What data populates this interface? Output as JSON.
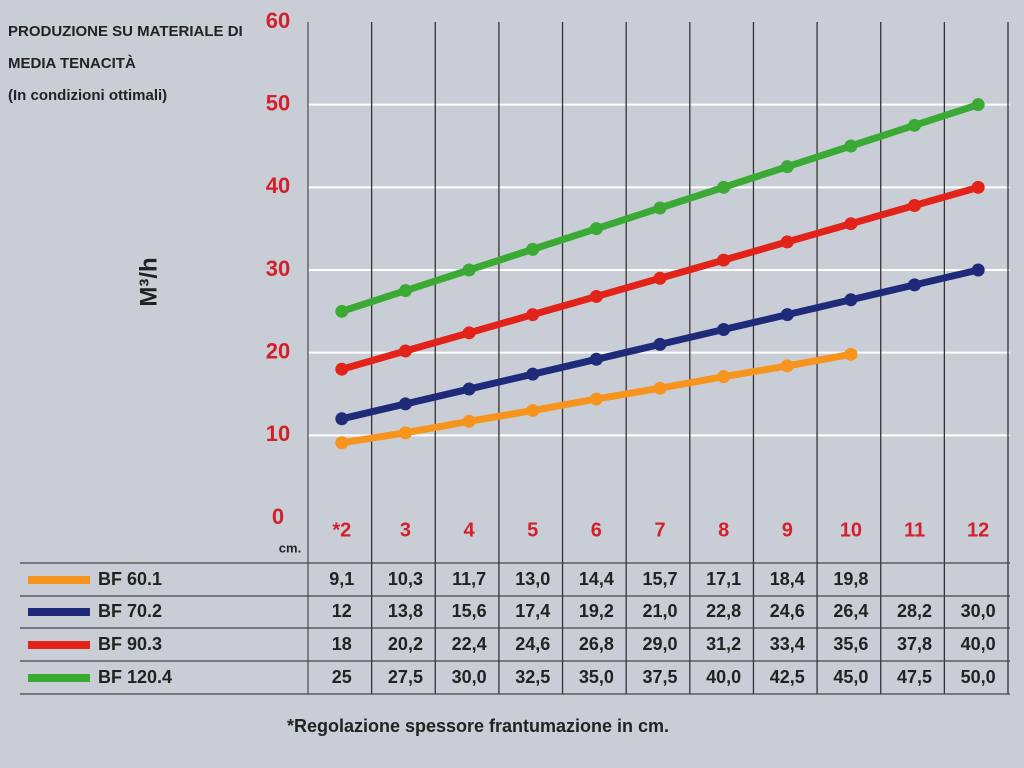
{
  "chart_data": {
    "type": "line",
    "title_lines": [
      "PRODUZIONE SU MATERIALE DI",
      "MEDIA TENACITÀ",
      "(In condizioni ottimali)"
    ],
    "y_label": "M³/h",
    "x_unit": "cm.",
    "categories": [
      "*2",
      "3",
      "4",
      "5",
      "6",
      "7",
      "8",
      "9",
      "10",
      "11",
      "12"
    ],
    "series": [
      {
        "name": "BF 60.1",
        "color": "#f7941d",
        "values": [
          9.1,
          10.3,
          11.7,
          13.0,
          14.4,
          15.7,
          17.1,
          18.4,
          19.8,
          null,
          null
        ],
        "value_labels": [
          "9,1",
          "10,3",
          "11,7",
          "13,0",
          "14,4",
          "15,7",
          "17,1",
          "18,4",
          "19,8",
          null,
          null
        ]
      },
      {
        "name": "BF 70.2",
        "color": "#1f2a7a",
        "values": [
          12,
          13.8,
          15.6,
          17.4,
          19.2,
          21.0,
          22.8,
          24.6,
          26.4,
          28.2,
          30.0
        ],
        "value_labels": [
          "12",
          "13,8",
          "15,6",
          "17,4",
          "19,2",
          "21,0",
          "22,8",
          "24,6",
          "26,4",
          "28,2",
          "30,0"
        ]
      },
      {
        "name": "BF 90.3",
        "color": "#e2231a",
        "values": [
          18,
          20.2,
          22.4,
          24.6,
          26.8,
          29.0,
          31.2,
          33.4,
          35.6,
          37.8,
          40.0
        ],
        "value_labels": [
          "18",
          "20,2",
          "22,4",
          "24,6",
          "26,8",
          "29,0",
          "31,2",
          "33,4",
          "35,6",
          "37,8",
          "40,0"
        ]
      },
      {
        "name": "BF 120.4",
        "color": "#3aaa35",
        "values": [
          25,
          27.5,
          30.0,
          32.5,
          35.0,
          37.5,
          40.0,
          42.5,
          45.0,
          47.5,
          50.0
        ],
        "value_labels": [
          "25",
          "27,5",
          "30,0",
          "32,5",
          "35,0",
          "37,5",
          "40,0",
          "42,5",
          "45,0",
          "47,5",
          "50,0"
        ]
      }
    ],
    "ylim": [
      0,
      60
    ],
    "yticks": [
      0,
      10,
      20,
      30,
      40,
      50,
      60
    ],
    "grid": true,
    "footnote": "*Regolazione spessore frantumazione in cm."
  }
}
